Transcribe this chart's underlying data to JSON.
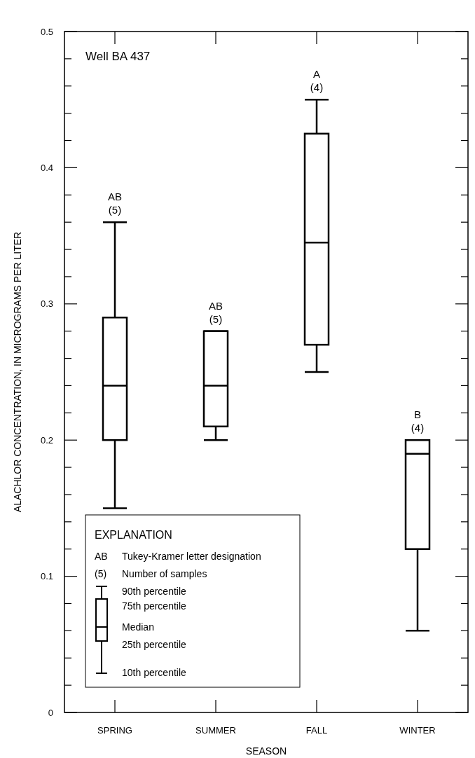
{
  "chart_data": {
    "type": "box",
    "xlabel": "SEASON",
    "ylabel": "ALACHLOR CONCENTRATION, IN MICROGRAMS PER LITER",
    "categories": [
      "SPRING",
      "SUMMER",
      "FALL",
      "WINTER"
    ],
    "boxes": [
      {
        "low": 0.15,
        "q1": 0.2,
        "median": 0.24,
        "q3": 0.29,
        "high": 0.36
      },
      {
        "low": 0.2,
        "q1": 0.21,
        "median": 0.24,
        "q3": 0.28,
        "high": 0.28
      },
      {
        "low": 0.25,
        "q1": 0.27,
        "median": 0.345,
        "q3": 0.425,
        "high": 0.45
      },
      {
        "low": 0.06,
        "q1": 0.12,
        "median": 0.19,
        "q3": 0.2,
        "high": 0.2
      }
    ],
    "color": "#000000",
    "ylim": [
      0,
      0.5
    ],
    "yticks": [
      0,
      {
        "value": 0.02,
        "label": null
      },
      {
        "value": 0.04,
        "label": null
      },
      {
        "value": 0.06,
        "label": null
      },
      {
        "value": 0.08,
        "label": null
      },
      0.1,
      {
        "value": 0.12,
        "label": null
      },
      {
        "value": 0.14,
        "label": null
      },
      {
        "value": 0.16,
        "label": null
      },
      {
        "value": 0.18,
        "label": null
      },
      0.2,
      {
        "value": 0.22,
        "label": null
      },
      {
        "value": 0.24,
        "label": null
      },
      {
        "value": 0.26,
        "label": null
      },
      {
        "value": 0.28,
        "label": null
      },
      0.3,
      {
        "value": 0.32,
        "label": null
      },
      {
        "value": 0.34,
        "label": null
      },
      {
        "value": 0.36,
        "label": null
      },
      {
        "value": 0.38,
        "label": null
      },
      0.4,
      {
        "value": 0.42,
        "label": null
      },
      {
        "value": 0.44,
        "label": null
      },
      {
        "value": 0.46,
        "label": null
      },
      {
        "value": 0.48,
        "label": null
      },
      0.5
    ],
    "grid": false,
    "annotations": [
      "Well BA 437",
      {
        "text": "AB\n(5)",
        "x": "SPRING",
        "y": 0.36
      },
      {
        "text": "AB\n(5)",
        "x": "SUMMER",
        "y": 0.28
      },
      {
        "text": "A\n(4)",
        "x": "FALL",
        "y": 0.45
      },
      {
        "text": "B\n(4)",
        "x": "WINTER",
        "y": 0.2
      },
      "EXPLANATION",
      "AB",
      "Tukey-Kramer letter designation",
      "(5)",
      "Number of samples",
      "90th percentile",
      "75th percentile",
      "Median",
      "25th percentile",
      "10th percentile"
    ]
  }
}
